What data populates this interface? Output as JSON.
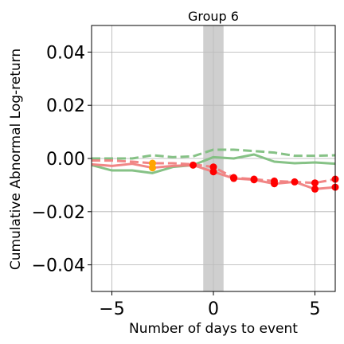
{
  "chart_data": {
    "type": "line",
    "title": "Group 6",
    "xlabel": "Number of days to event",
    "ylabel": "Cumulative Abnormal Log-return",
    "xlim": [
      -6,
      6
    ],
    "ylim": [
      -0.05,
      0.05
    ],
    "x_ticks": [
      -5,
      0,
      5
    ],
    "x_tick_labels": [
      "−5",
      "0",
      "5"
    ],
    "y_ticks": [
      -0.04,
      -0.02,
      0.0,
      0.02,
      0.04
    ],
    "y_tick_labels": [
      "−0.04",
      "−0.02",
      "0.00",
      "0.02",
      "0.04"
    ],
    "grid": true,
    "event_window": [
      -0.5,
      0.5
    ],
    "series": [
      {
        "style": "dashed",
        "color": "#7fbf7f",
        "x": [
          -6,
          -5,
          -4,
          -3,
          -2,
          -1,
          0,
          1,
          2,
          3,
          4,
          5,
          6
        ],
        "y": [
          0.0,
          0.0,
          0.0,
          0.0012,
          0.0005,
          0.0008,
          0.0033,
          0.0033,
          0.0028,
          0.0022,
          0.001,
          0.001,
          0.0012
        ]
      },
      {
        "style": "solid",
        "color": "#7fbf7f",
        "x": [
          -6,
          -5,
          -4,
          -3,
          -2,
          -1,
          0,
          1,
          2,
          3,
          4,
          5,
          6
        ],
        "y": [
          -0.0025,
          -0.0045,
          -0.0045,
          -0.0055,
          -0.0032,
          -0.0025,
          0.0005,
          0.0,
          0.0015,
          -0.0012,
          -0.0018,
          -0.0015,
          -0.002
        ]
      },
      {
        "style": "dashed",
        "color": "#f08080",
        "x": [
          -6,
          -5,
          -4,
          -3,
          -2,
          -1,
          0,
          1,
          2,
          3,
          4,
          5,
          6
        ],
        "y": [
          -0.0008,
          -0.0008,
          -0.0012,
          -0.0018,
          -0.0018,
          -0.0022,
          -0.0032,
          -0.0072,
          -0.0078,
          -0.0085,
          -0.0088,
          -0.0092,
          -0.0078
        ]
      },
      {
        "style": "solid",
        "color": "#f08080",
        "x": [
          -6,
          -5,
          -4,
          -3,
          -2,
          -1,
          0,
          1,
          2,
          3,
          4,
          5,
          6
        ],
        "y": [
          -0.0022,
          -0.0028,
          -0.002,
          -0.0035,
          -0.0028,
          -0.0025,
          -0.005,
          -0.0075,
          -0.008,
          -0.0095,
          -0.0088,
          -0.0115,
          -0.0108
        ]
      }
    ],
    "markers": [
      {
        "color": "#ffa500",
        "x": -3,
        "y": -0.0018
      },
      {
        "color": "#ffa500",
        "x": -3,
        "y": -0.0035
      },
      {
        "color": "#ff0000",
        "x": -1,
        "y": -0.0025
      },
      {
        "color": "#ff0000",
        "x": 0,
        "y": -0.0032
      },
      {
        "color": "#ff0000",
        "x": 0,
        "y": -0.005
      },
      {
        "color": "#ff0000",
        "x": 1,
        "y": -0.0072
      },
      {
        "color": "#ff0000",
        "x": 1,
        "y": -0.0075
      },
      {
        "color": "#ff0000",
        "x": 2,
        "y": -0.0078
      },
      {
        "color": "#ff0000",
        "x": 2,
        "y": -0.008
      },
      {
        "color": "#ff0000",
        "x": 3,
        "y": -0.0085
      },
      {
        "color": "#ff0000",
        "x": 3,
        "y": -0.0095
      },
      {
        "color": "#ff0000",
        "x": 4,
        "y": -0.0088
      },
      {
        "color": "#ff0000",
        "x": 5,
        "y": -0.0092
      },
      {
        "color": "#ff0000",
        "x": 5,
        "y": -0.0115
      },
      {
        "color": "#ff0000",
        "x": 6,
        "y": -0.0078
      },
      {
        "color": "#ff0000",
        "x": 6,
        "y": -0.0108
      }
    ],
    "colors": {
      "grid": "#b0b0b0",
      "event_band": "#bfbfbf",
      "axes": "#000000"
    }
  }
}
